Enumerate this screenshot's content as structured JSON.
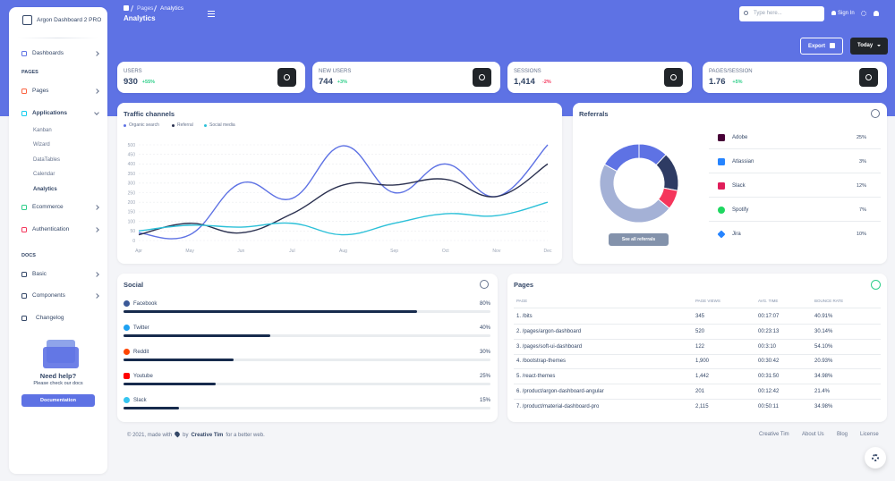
{
  "sidebar": {
    "brand": "Argon Dashboard 2 PRO",
    "items": [
      "Dashboards",
      "Pages",
      "Applications",
      "Ecommerce",
      "Authentication",
      "Basic",
      "Components",
      "Changelog"
    ],
    "sections": [
      "PAGES",
      "DOCS"
    ],
    "applications": [
      "Kanban",
      "Wizard",
      "DataTables",
      "Calendar",
      "Analytics"
    ],
    "help": {
      "title": "Need help?",
      "text": "Please check our docs",
      "button": "Documentation"
    }
  },
  "header": {
    "breadcrumb": [
      "Pages",
      "Analytics"
    ],
    "title": "Analytics",
    "search_placeholder": "Type here...",
    "sign_in": "Sign In",
    "export": "Export",
    "today": "Today"
  },
  "stats": [
    {
      "label": "USERS",
      "value": "930",
      "change": "+55%"
    },
    {
      "label": "NEW USERS",
      "value": "744",
      "change": "+3%"
    },
    {
      "label": "SESSIONS",
      "value": "1,414",
      "change": "-2%"
    },
    {
      "label": "PAGES/SESSION",
      "value": "1.76",
      "change": "+5%"
    }
  ],
  "chart_data": [
    {
      "type": "line",
      "title": "Traffic channels",
      "categories": [
        "Apr",
        "May",
        "Jun",
        "Jul",
        "Aug",
        "Sep",
        "Oct",
        "Nov",
        "Dec"
      ],
      "series": [
        {
          "name": "Organic search",
          "color": "#5e72e4",
          "values": [
            40,
            30,
            300,
            220,
            495,
            250,
            400,
            230,
            500
          ]
        },
        {
          "name": "Referral",
          "color": "#2b3150",
          "values": [
            30,
            90,
            40,
            140,
            290,
            290,
            320,
            230,
            400
          ]
        },
        {
          "name": "Social media",
          "color": "#2bc0d8",
          "values": [
            50,
            80,
            70,
            90,
            30,
            90,
            140,
            130,
            200
          ]
        }
      ],
      "ylim": [
        0,
        500
      ],
      "yticks": [
        0,
        50,
        100,
        150,
        200,
        250,
        300,
        350,
        400,
        450,
        500
      ],
      "grid": true
    },
    {
      "type": "doughnut",
      "title": "Referrals",
      "values": [
        12,
        16,
        8,
        47,
        17
      ],
      "colors": [
        "#5e72e4",
        "#2e3b63",
        "#f5365c",
        "#a4b1d6",
        "#5e72e4"
      ]
    }
  ],
  "referrals": {
    "items": [
      {
        "name": "Adobe",
        "value": "25%"
      },
      {
        "name": "Atlassian",
        "value": "3%"
      },
      {
        "name": "Slack",
        "value": "12%"
      },
      {
        "name": "Spotify",
        "value": "7%"
      },
      {
        "name": "Jira",
        "value": "10%"
      }
    ],
    "button": "See all referrals"
  },
  "social": {
    "title": "Social",
    "items": [
      "Facebook",
      "Twitter",
      "Reddit",
      "Youtube",
      "Slack"
    ],
    "values": [
      80,
      40,
      30,
      25,
      15
    ],
    "value_labels": [
      "80%",
      "40%",
      "30%",
      "25%",
      "15%"
    ],
    "xlim": [
      0,
      100
    ],
    "color": "#172b4d"
  },
  "pages": {
    "title": "Pages",
    "columns": [
      "PAGE",
      "PAGE VIEWS",
      "AVG. TIME",
      "BOUNCE RATE"
    ],
    "rows": [
      [
        "1. /bits",
        "345",
        "00:17:07",
        "40.91%"
      ],
      [
        "2. /pages/argon-dashboard",
        "520",
        "00:23:13",
        "30.14%"
      ],
      [
        "3. /pages/soft-ui-dashboard",
        "122",
        "00:3:10",
        "54.10%"
      ],
      [
        "4. /bootstrap-themes",
        "1,900",
        "00:30:42",
        "20.93%"
      ],
      [
        "5. /react-themes",
        "1,442",
        "00:31:50",
        "34.98%"
      ],
      [
        "6. /product/argon-dashboard-angular",
        "201",
        "00:12:42",
        "21.4%"
      ],
      [
        "7. /product/material-dashboard-pro",
        "2,115",
        "00:50:11",
        "34.98%"
      ]
    ]
  },
  "footer": {
    "copyright": "© 2021, made with",
    "by": "by",
    "author": "Creative Tim",
    "suffix": "for a better web.",
    "links": [
      "Creative Tim",
      "About Us",
      "Blog",
      "License"
    ]
  }
}
